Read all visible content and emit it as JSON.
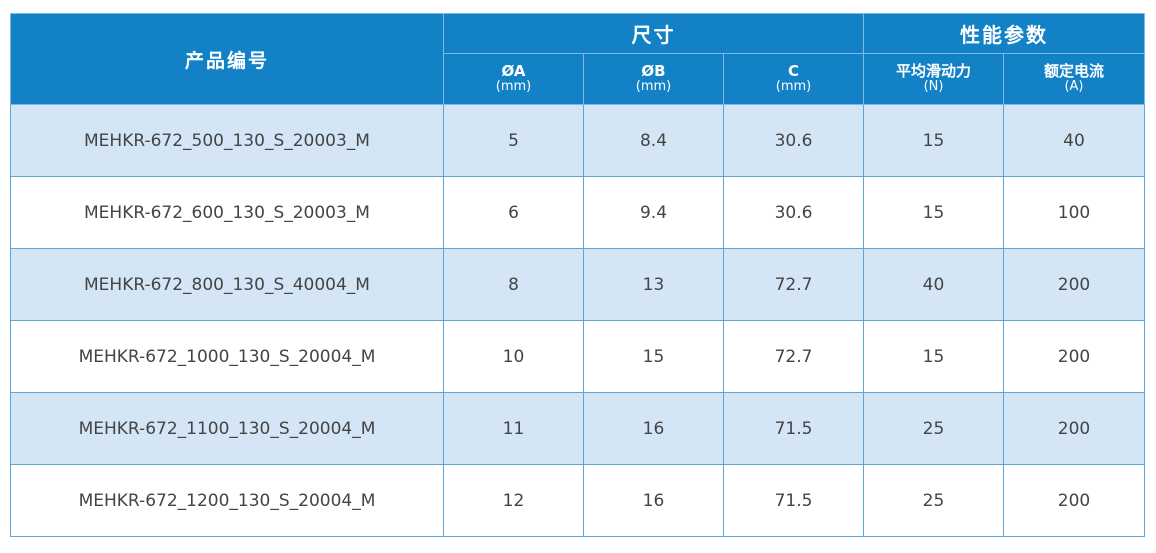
{
  "header": {
    "product_code": "产品编号",
    "groups": [
      "尺寸",
      "性能参数"
    ],
    "columns": [
      {
        "label": "ØA",
        "unit": "(mm)"
      },
      {
        "label": "ØB",
        "unit": "(mm)"
      },
      {
        "label": "C",
        "unit": "(mm)"
      },
      {
        "label": "平均滑动力",
        "unit": "(N)"
      },
      {
        "label": "额定电流",
        "unit": "(A)"
      }
    ]
  },
  "table": {
    "rows": [
      [
        "MEHKR-672_500_130_S_20003_M",
        "5",
        "8.4",
        "30.6",
        "15",
        "40"
      ],
      [
        "MEHKR-672_600_130_S_20003_M",
        "6",
        "9.4",
        "30.6",
        "15",
        "100"
      ],
      [
        "MEHKR-672_800_130_S_40004_M",
        "8",
        "13",
        "72.7",
        "40",
        "200"
      ],
      [
        "MEHKR-672_1000_130_S_20004_M",
        "10",
        "15",
        "72.7",
        "15",
        "200"
      ],
      [
        "MEHKR-672_1100_130_S_20004_M",
        "11",
        "16",
        "71.5",
        "25",
        "200"
      ],
      [
        "MEHKR-672_1200_130_S_20004_M",
        "12",
        "16",
        "71.5",
        "25",
        "200"
      ]
    ]
  }
}
